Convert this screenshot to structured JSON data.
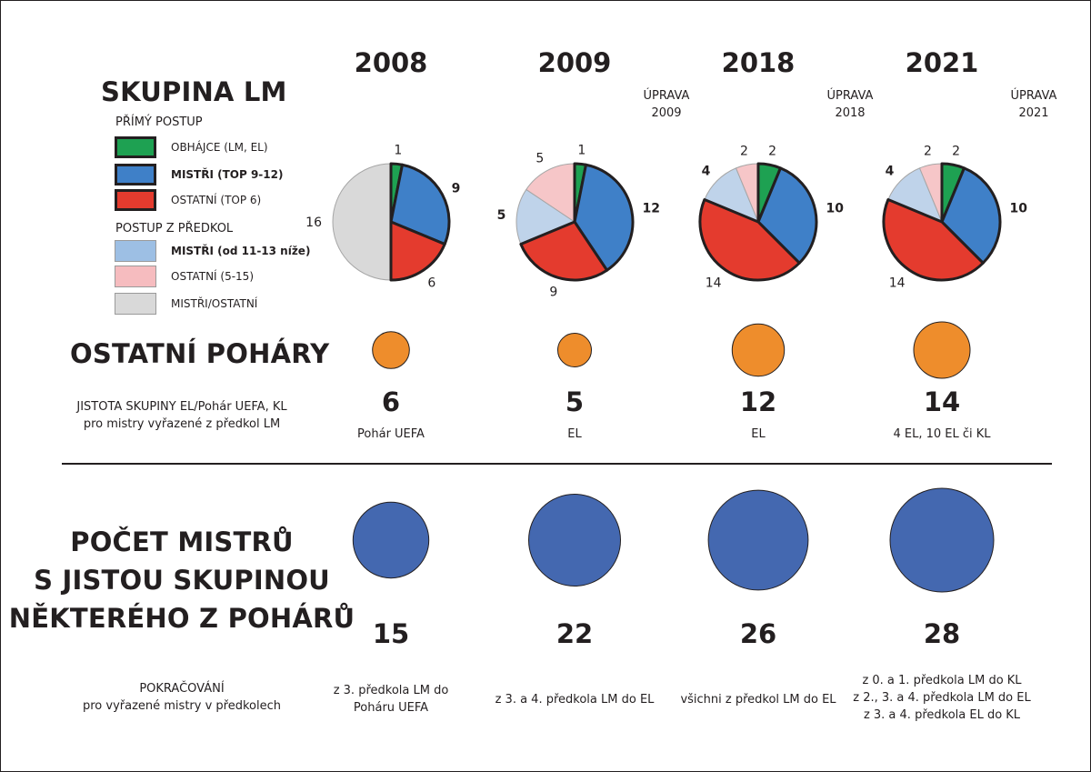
{
  "header": {
    "title": "SKUPINA LM",
    "direct_heading": "PŘÍMÝ POSTUP",
    "qualifying_heading": "POSTUP Z PŘEDKOL"
  },
  "legend": [
    {
      "label": "OBHÁJCE (LM, EL)",
      "color": "#1ea152",
      "border": "#231f20",
      "bold": false
    },
    {
      "label": "MISTŘI (TOP 9-12)",
      "color": "#3f80c8",
      "border": "#231f20",
      "bold": true
    },
    {
      "label": "OSTATNÍ (TOP 6)",
      "color": "#e43b2e",
      "border": "#231f20",
      "bold": false
    },
    {
      "label": "MISTŘI (od 11-13 níže)",
      "color": "#9dbfe4",
      "border": "#9a9a9a",
      "bold": true
    },
    {
      "label": "OSTATNÍ (5-15)",
      "color": "#f6bcbf",
      "border": "#9a9a9a",
      "bold": false
    },
    {
      "label": "MISTŘI/OSTATNÍ",
      "color": "#d9d9d9",
      "border": "#9a9a9a",
      "bold": false
    }
  ],
  "sections": {
    "other_cups": "OSTATNÍ POHÁRY",
    "guarantee_line1": "JISTOTA SKUPINY EL/Pohár UEFA, KL",
    "guarantee_line2": "pro mistry vyřazené z předkol LM",
    "champions_line1": "POČET MISTRŮ",
    "champions_line2": "S JISTOU SKUPINOU",
    "champions_line3": "NĚKTERÉHO Z POHÁRŮ",
    "continuation_line1": "POKRAČOVÁNÍ",
    "continuation_line2": "pro vyřazené mistry v předkolech"
  },
  "chart_data": {
    "type": "pie",
    "colors": {
      "holder": "#1ea152",
      "champions_top": "#3f80c8",
      "others_top": "#e43b2e",
      "champions_qual": "#bfd3ea",
      "others_qual": "#f6c6c8",
      "mixed_qual": "#d9d9d9",
      "other_cups_circle": "#ee8d2c",
      "champions_circle": "#4468b0"
    },
    "years": [
      {
        "year": "2008",
        "revision": [],
        "slices": [
          {
            "key": "holder",
            "value": 1,
            "label": "1",
            "bold": false
          },
          {
            "key": "champions_top",
            "value": 9,
            "label": "9",
            "bold": true
          },
          {
            "key": "others_top",
            "value": 6,
            "label": "6",
            "bold": false
          },
          {
            "key": "mixed_qual",
            "value": 16,
            "label": "16",
            "bold": false
          }
        ],
        "other_cups_count": "6",
        "other_cups_comp": "Pohár UEFA",
        "champions_count": "15",
        "continuation": [
          "z 3. předkola LM do",
          "Poháru UEFA"
        ]
      },
      {
        "year": "2009",
        "revision": [
          "ÚPRAVA",
          "2009"
        ],
        "slices": [
          {
            "key": "holder",
            "value": 1,
            "label": "1",
            "bold": false
          },
          {
            "key": "champions_top",
            "value": 12,
            "label": "12",
            "bold": true
          },
          {
            "key": "others_top",
            "value": 9,
            "label": "9",
            "bold": false
          },
          {
            "key": "champions_qual",
            "value": 5,
            "label": "5",
            "bold": true
          },
          {
            "key": "others_qual",
            "value": 5,
            "label": "5",
            "bold": false
          }
        ],
        "other_cups_count": "5",
        "other_cups_comp": "EL",
        "champions_count": "22",
        "continuation": [
          "z 3. a 4. předkola LM do EL"
        ]
      },
      {
        "year": "2018",
        "revision": [
          "ÚPRAVA",
          "2018"
        ],
        "slices": [
          {
            "key": "holder",
            "value": 2,
            "label": "2",
            "bold": false
          },
          {
            "key": "champions_top",
            "value": 10,
            "label": "10",
            "bold": true
          },
          {
            "key": "others_top",
            "value": 14,
            "label": "14",
            "bold": false
          },
          {
            "key": "champions_qual",
            "value": 4,
            "label": "4",
            "bold": true
          },
          {
            "key": "others_qual",
            "value": 2,
            "label": "2",
            "bold": false
          }
        ],
        "other_cups_count": "12",
        "other_cups_comp": "EL",
        "champions_count": "26",
        "continuation": [
          "všichni z předkol LM do EL"
        ]
      },
      {
        "year": "2021",
        "revision": [
          "ÚPRAVA",
          "2021"
        ],
        "slices": [
          {
            "key": "holder",
            "value": 2,
            "label": "2",
            "bold": false
          },
          {
            "key": "champions_top",
            "value": 10,
            "label": "10",
            "bold": true
          },
          {
            "key": "others_top",
            "value": 14,
            "label": "14",
            "bold": false
          },
          {
            "key": "champions_qual",
            "value": 4,
            "label": "4",
            "bold": true
          },
          {
            "key": "others_qual",
            "value": 2,
            "label": "2",
            "bold": false
          }
        ],
        "other_cups_count": "14",
        "other_cups_comp": "4 EL, 10 EL či KL",
        "champions_count": "28",
        "continuation": [
          "z 0. a 1. předkola LM do KL",
          "z 2., 3. a 4. předkola LM do EL",
          "z 3. a 4. předkola EL do KL"
        ]
      }
    ]
  }
}
